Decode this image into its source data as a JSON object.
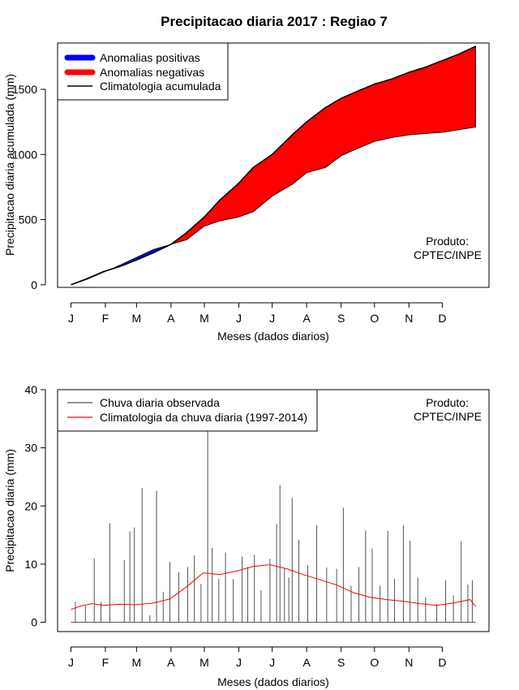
{
  "figure": {
    "title": "Precipitacao diaria 2017 : Regiao 7"
  },
  "chart_data": [
    {
      "type": "area",
      "name": "accumulated",
      "title": "Precipitacao diaria 2017 : Regiao 7",
      "xlabel": "Meses (dados diarios)",
      "ylabel": "Precipitacao diaria acumulada (mm)",
      "month_ticks": [
        "J",
        "F",
        "M",
        "A",
        "M",
        "J",
        "J",
        "A",
        "S",
        "O",
        "N",
        "D"
      ],
      "month_start_days": [
        1,
        32,
        60,
        91,
        121,
        152,
        182,
        213,
        244,
        274,
        305,
        335
      ],
      "xlim": [
        -11,
        377
      ],
      "ylim": [
        -20,
        1855
      ],
      "yticks": [
        0,
        500,
        1000,
        1500
      ],
      "legend": {
        "position": "top-left",
        "entries": [
          {
            "label": "Anomalias positivas",
            "color": "#0000ff",
            "kind": "thick"
          },
          {
            "label": "Anomalias negativas",
            "color": "#ff0000",
            "kind": "thick"
          },
          {
            "label": "Climatologia acumulada",
            "color": "#000000",
            "kind": "line"
          }
        ]
      },
      "annotation": [
        "Produto:",
        "CPTEC/INPE"
      ],
      "climatology": {
        "name": "Climatologia acumulada",
        "x": [
          1,
          15,
          30,
          45,
          60,
          75,
          91,
          105,
          121,
          135,
          152,
          165,
          182,
          200,
          213,
          230,
          244,
          260,
          274,
          290,
          305,
          320,
          335,
          350,
          365
        ],
        "y": [
          0,
          45,
          100,
          140,
          190,
          245,
          310,
          400,
          520,
          650,
          780,
          900,
          1000,
          1150,
          1250,
          1360,
          1430,
          1490,
          1540,
          1580,
          1630,
          1670,
          1720,
          1770,
          1830
        ]
      },
      "observed": {
        "name": "Precipitacao observada acumulada",
        "x": [
          1,
          15,
          30,
          45,
          60,
          75,
          91,
          105,
          121,
          135,
          152,
          165,
          182,
          200,
          213,
          230,
          244,
          260,
          274,
          290,
          305,
          320,
          335,
          350,
          365
        ],
        "y": [
          0,
          40,
          95,
          150,
          210,
          270,
          310,
          345,
          450,
          490,
          520,
          560,
          680,
          770,
          860,
          900,
          990,
          1050,
          1100,
          1130,
          1150,
          1160,
          1170,
          1190,
          1210
        ]
      },
      "series_colors": {
        "positive": "#0000ff",
        "negative": "#ff0000",
        "climatology": "#000000"
      }
    },
    {
      "type": "line",
      "name": "daily",
      "xlabel": "Meses (dados diarios)",
      "ylabel": "Precipitacao diaria (mm)",
      "month_ticks": [
        "J",
        "F",
        "M",
        "A",
        "M",
        "J",
        "J",
        "A",
        "S",
        "O",
        "N",
        "D"
      ],
      "month_start_days": [
        1,
        32,
        60,
        91,
        121,
        152,
        182,
        213,
        244,
        274,
        305,
        335
      ],
      "xlim": [
        -11,
        377
      ],
      "ylim": [
        -1.6,
        40
      ],
      "yticks": [
        0,
        10,
        20,
        30,
        40
      ],
      "legend": {
        "position": "top-left",
        "entries": [
          {
            "label": "Chuva diaria observada",
            "color": "#555555",
            "kind": "line"
          },
          {
            "label": "Climatologia da chuva diaria (1997-2014)",
            "color": "#ff0000",
            "kind": "line"
          }
        ]
      },
      "annotation": [
        "Produto:",
        "CPTEC/INPE"
      ],
      "observed_peaks": {
        "name": "Chuva diaria observada",
        "x": [
          5,
          14,
          22,
          28,
          36,
          49,
          54,
          58,
          65,
          72,
          78,
          84,
          90,
          98,
          106,
          112,
          118,
          124,
          128,
          134,
          140,
          147,
          155,
          160,
          166,
          172,
          180,
          186,
          189,
          193,
          197,
          200,
          206,
          214,
          222,
          231,
          240,
          246,
          253,
          260,
          266,
          272,
          279,
          286,
          292,
          300,
          306,
          313,
          320,
          330,
          338,
          345,
          352,
          358,
          362
        ],
        "y": [
          3.5,
          2.8,
          11,
          3.5,
          17,
          10.7,
          15.6,
          16.3,
          23.1,
          1.2,
          22.6,
          5.2,
          10.4,
          8.6,
          9.5,
          11.5,
          6.6,
          33.5,
          12.8,
          7.5,
          12,
          7.4,
          11.3,
          9.5,
          11.6,
          5.5,
          10.9,
          16.9,
          23.6,
          9.3,
          7.7,
          21.4,
          14.2,
          9.8,
          16.7,
          9.4,
          9.2,
          19.7,
          6.3,
          9.5,
          15.8,
          12.7,
          6.3,
          15.7,
          7.5,
          16.7,
          14,
          7.7,
          4.3,
          3.1,
          7.2,
          4.6,
          13.9,
          6.5,
          7.2
        ]
      },
      "climatology": {
        "name": "Climatologia da chuva diaria (1997-2014)",
        "x": [
          1,
          10,
          20,
          31,
          45,
          59,
          75,
          90,
          105,
          120,
          135,
          150,
          165,
          180,
          195,
          210,
          225,
          240,
          255,
          270,
          285,
          300,
          315,
          330,
          345,
          360,
          365
        ],
        "y": [
          2.2,
          2.8,
          3.2,
          2.9,
          3.1,
          3.0,
          3.3,
          4.0,
          6.1,
          8.5,
          8.2,
          8.8,
          9.6,
          9.9,
          9.2,
          8.2,
          7.3,
          6.4,
          5.1,
          4.3,
          3.9,
          3.6,
          3.2,
          2.9,
          3.3,
          3.9,
          2.7
        ]
      },
      "series_colors": {
        "observed": "#555555",
        "climatology": "#ff0000"
      }
    }
  ]
}
